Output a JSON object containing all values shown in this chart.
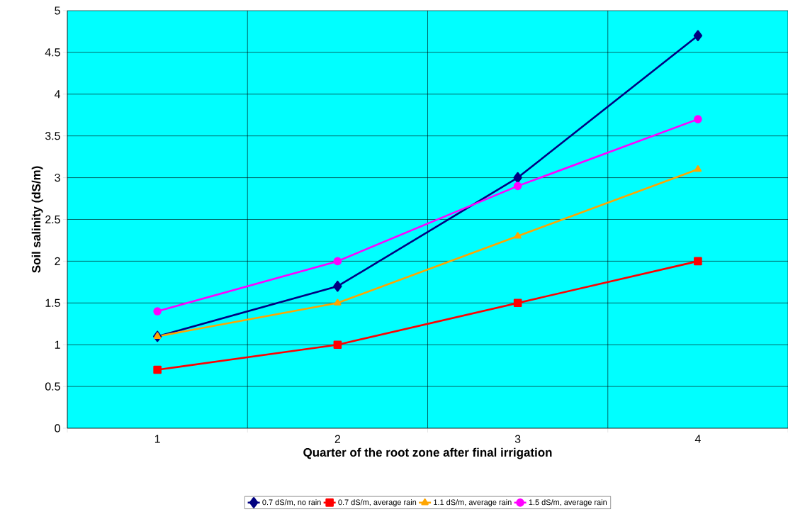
{
  "chart_data": {
    "type": "line",
    "xlabel": "Quarter of the root zone after final irrigation",
    "ylabel": "Soil salinity (dS/m)",
    "categories": [
      "1",
      "2",
      "3",
      "4"
    ],
    "series": [
      {
        "name": "0.7 dS/m, no rain",
        "color": "#000080",
        "marker": "diamond",
        "values": [
          1.1,
          1.7,
          3.0,
          4.7
        ]
      },
      {
        "name": "0.7 dS/m, average rain",
        "color": "#ff0000",
        "marker": "square",
        "values": [
          0.7,
          1.0,
          1.5,
          2.0
        ]
      },
      {
        "name": "1.1 dS/m, average rain",
        "color": "#ffa500",
        "marker": "triangle",
        "values": [
          1.1,
          1.5,
          2.3,
          3.1
        ]
      },
      {
        "name": "1.5 dS/m, average rain",
        "color": "#ff00ff",
        "marker": "circle",
        "values": [
          1.4,
          2.0,
          2.9,
          3.7
        ]
      }
    ],
    "ylim": [
      0,
      5
    ],
    "yticks": [
      0,
      0.5,
      1,
      1.5,
      2,
      2.5,
      3,
      3.5,
      4,
      4.5,
      5
    ],
    "grid": true,
    "legend": "bottom",
    "line_style": "solid"
  }
}
